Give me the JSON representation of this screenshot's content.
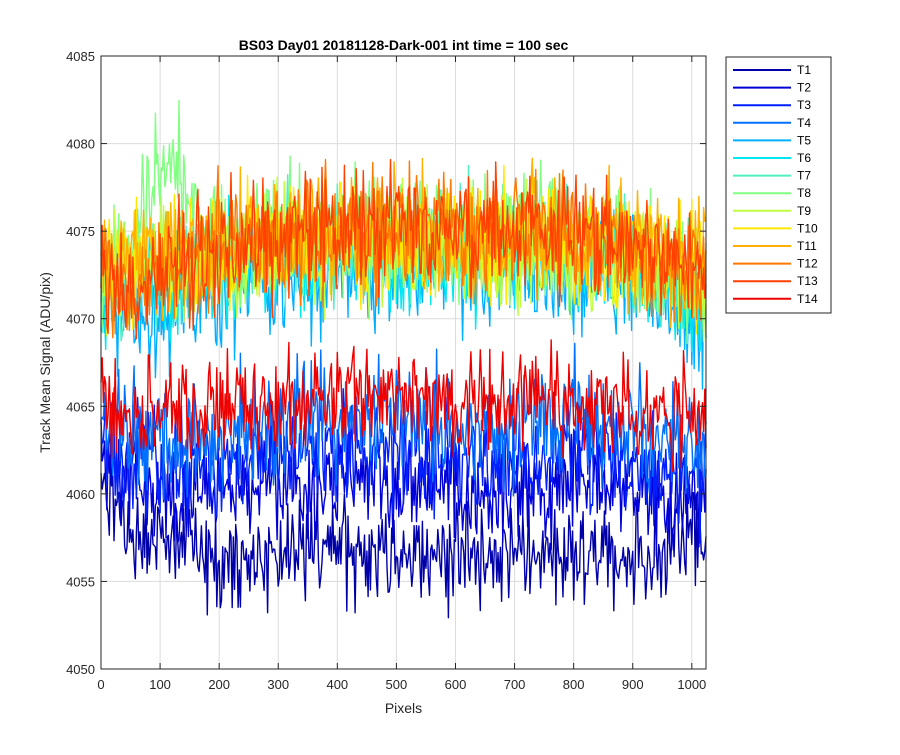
{
  "chart_data": {
    "type": "line",
    "title": "BS03 Day01 20181128-Dark-001 int time = 100 sec",
    "xlabel": "Pixels",
    "ylabel": "Track Mean Signal (ADU/pix)",
    "xlim": [
      0,
      1024
    ],
    "ylim": [
      4050,
      4085
    ],
    "xticks": [
      0,
      100,
      200,
      300,
      400,
      500,
      600,
      700,
      800,
      900,
      1000
    ],
    "yticks": [
      4050,
      4055,
      4060,
      4065,
      4070,
      4075,
      4080,
      4085
    ],
    "grid": true,
    "legend_position": "outside-top-right",
    "x_samples": [
      0,
      20,
      40,
      60,
      80,
      100,
      120,
      140,
      160,
      200,
      250,
      300,
      350,
      400,
      450,
      500,
      550,
      600,
      650,
      700,
      750,
      800,
      850,
      900,
      950,
      1000,
      1024
    ],
    "series": [
      {
        "name": "T1",
        "color": "#0000a8",
        "noise": 1.4,
        "values": [
          4060.5,
          4059.0,
          4058.5,
          4058.0,
          4057.5,
          4057.3,
          4057.0,
          4056.8,
          4056.6,
          4056.4,
          4056.2,
          4056.5,
          4056.7,
          4056.8,
          4056.8,
          4056.8,
          4056.6,
          4056.5,
          4056.3,
          4056.4,
          4056.5,
          4056.7,
          4056.5,
          4056.4,
          4056.8,
          4057.2,
          4057.5
        ]
      },
      {
        "name": "T2",
        "color": "#0000d8",
        "noise": 1.4,
        "values": [
          4062.0,
          4061.5,
          4061.0,
          4060.8,
          4060.5,
          4060.4,
          4060.3,
          4060.2,
          4060.2,
          4060.1,
          4060.0,
          4060.2,
          4060.3,
          4060.4,
          4060.4,
          4060.5,
          4060.3,
          4060.2,
          4060.1,
          4060.2,
          4060.3,
          4060.5,
          4060.4,
          4060.1,
          4060.0,
          4060.0,
          4060.0
        ]
      },
      {
        "name": "T3",
        "color": "#0020ff",
        "noise": 1.5,
        "values": [
          4063.0,
          4062.5,
          4062.2,
          4062.0,
          4061.8,
          4061.8,
          4061.7,
          4061.7,
          4061.7,
          4061.8,
          4061.9,
          4062.1,
          4062.3,
          4062.3,
          4062.4,
          4062.4,
          4062.2,
          4062.0,
          4061.9,
          4062.0,
          4062.1,
          4062.3,
          4062.0,
          4061.8,
          4061.5,
          4061.3,
          4061.2
        ]
      },
      {
        "name": "T4",
        "color": "#0070ff",
        "noise": 1.6,
        "values": [
          4064.5,
          4064.0,
          4063.7,
          4063.5,
          4063.3,
          4063.3,
          4063.2,
          4063.2,
          4063.3,
          4063.4,
          4063.6,
          4064.0,
          4064.3,
          4064.4,
          4064.5,
          4064.5,
          4064.3,
          4064.1,
          4063.9,
          4064.0,
          4064.2,
          4064.4,
          4064.0,
          4063.7,
          4063.3,
          4063.0,
          4062.8
        ]
      },
      {
        "name": "T5",
        "color": "#00b0ff",
        "noise": 1.6,
        "values": [
          4071.0,
          4070.8,
          4070.5,
          4070.3,
          4070.2,
          4070.3,
          4070.5,
          4070.7,
          4071.0,
          4071.5,
          4072.0,
          4072.3,
          4072.5,
          4072.6,
          4072.6,
          4072.6,
          4072.5,
          4072.4,
          4072.3,
          4072.4,
          4072.5,
          4072.6,
          4072.3,
          4071.8,
          4071.2,
          4070.5,
          4070.0
        ]
      },
      {
        "name": "T6",
        "color": "#00e8f0",
        "noise": 1.6,
        "values": [
          4072.0,
          4071.8,
          4071.6,
          4071.5,
          4071.6,
          4071.8,
          4072.0,
          4072.2,
          4072.4,
          4072.8,
          4073.2,
          4073.5,
          4073.7,
          4073.8,
          4073.8,
          4073.8,
          4073.7,
          4073.6,
          4073.5,
          4073.6,
          4073.7,
          4073.7,
          4073.4,
          4072.8,
          4072.0,
          4071.2,
          4070.8
        ]
      },
      {
        "name": "T7",
        "color": "#50f0c0",
        "noise": 1.6,
        "values": [
          4072.5,
          4072.3,
          4072.2,
          4072.3,
          4072.6,
          4073.0,
          4073.2,
          4073.3,
          4073.4,
          4073.6,
          4073.9,
          4074.2,
          4074.4,
          4074.5,
          4074.6,
          4074.6,
          4074.5,
          4074.4,
          4074.3,
          4074.4,
          4074.5,
          4074.5,
          4074.2,
          4073.5,
          4072.6,
          4071.8,
          4071.5
        ]
      },
      {
        "name": "T8",
        "color": "#80ff80",
        "noise": 1.7,
        "values": [
          4073.0,
          4073.2,
          4073.8,
          4075.0,
          4077.0,
          4078.5,
          4078.8,
          4077.5,
          4075.8,
          4074.5,
          4074.4,
          4074.6,
          4074.8,
          4074.9,
          4075.0,
          4075.0,
          4074.9,
          4074.8,
          4074.7,
          4074.8,
          4074.9,
          4074.9,
          4074.5,
          4073.8,
          4072.8,
          4072.0,
          4071.6
        ]
      },
      {
        "name": "T9",
        "color": "#c0ff40",
        "noise": 1.7,
        "values": [
          4073.0,
          4072.8,
          4072.6,
          4072.6,
          4072.8,
          4073.0,
          4073.1,
          4073.2,
          4073.3,
          4073.5,
          4073.7,
          4073.9,
          4074.0,
          4074.1,
          4074.1,
          4074.1,
          4074.0,
          4073.9,
          4073.8,
          4073.9,
          4074.0,
          4074.0,
          4073.8,
          4073.4,
          4073.0,
          4072.7,
          4072.5
        ]
      },
      {
        "name": "T10",
        "color": "#ffe800",
        "noise": 1.7,
        "values": [
          4073.5,
          4073.3,
          4073.1,
          4073.1,
          4073.2,
          4073.4,
          4073.5,
          4073.6,
          4073.7,
          4073.9,
          4074.1,
          4074.3,
          4074.4,
          4074.5,
          4074.5,
          4074.5,
          4074.4,
          4074.3,
          4074.2,
          4074.3,
          4074.4,
          4074.4,
          4074.2,
          4073.8,
          4073.4,
          4073.1,
          4072.9
        ]
      },
      {
        "name": "T11",
        "color": "#ffb000",
        "noise": 1.7,
        "values": [
          4073.8,
          4073.6,
          4073.4,
          4073.4,
          4073.5,
          4073.7,
          4073.8,
          4073.9,
          4074.0,
          4074.2,
          4074.4,
          4074.6,
          4074.7,
          4074.8,
          4074.8,
          4074.8,
          4074.7,
          4074.6,
          4074.5,
          4074.6,
          4074.7,
          4074.7,
          4074.5,
          4074.0,
          4073.6,
          4073.3,
          4073.1
        ]
      },
      {
        "name": "T12",
        "color": "#ff7800",
        "noise": 1.7,
        "values": [
          4072.5,
          4072.2,
          4072.0,
          4072.1,
          4072.4,
          4072.8,
          4073.1,
          4073.4,
          4073.7,
          4074.1,
          4074.4,
          4074.7,
          4074.9,
          4075.0,
          4075.1,
          4075.1,
          4075.0,
          4074.9,
          4074.8,
          4074.9,
          4075.0,
          4075.0,
          4074.7,
          4074.1,
          4073.6,
          4073.2,
          4073.0
        ]
      },
      {
        "name": "T13",
        "color": "#ff4000",
        "noise": 1.7,
        "values": [
          4072.0,
          4071.7,
          4071.5,
          4071.6,
          4071.9,
          4072.3,
          4072.7,
          4073.0,
          4073.4,
          4073.9,
          4074.3,
          4074.7,
          4075.0,
          4075.1,
          4075.2,
          4075.2,
          4075.1,
          4075.0,
          4074.9,
          4075.0,
          4075.1,
          4075.1,
          4074.8,
          4074.1,
          4073.5,
          4073.0,
          4072.8
        ]
      },
      {
        "name": "T14",
        "color": "#ee0000",
        "noise": 1.4,
        "values": [
          4065.0,
          4065.0,
          4064.8,
          4064.7,
          4064.7,
          4064.8,
          4064.8,
          4064.8,
          4064.9,
          4065.0,
          4065.0,
          4065.2,
          4065.3,
          4065.4,
          4065.5,
          4065.5,
          4065.5,
          4065.5,
          4065.4,
          4065.5,
          4065.6,
          4065.6,
          4065.4,
          4065.1,
          4064.9,
          4064.8,
          4064.8
        ]
      }
    ]
  }
}
